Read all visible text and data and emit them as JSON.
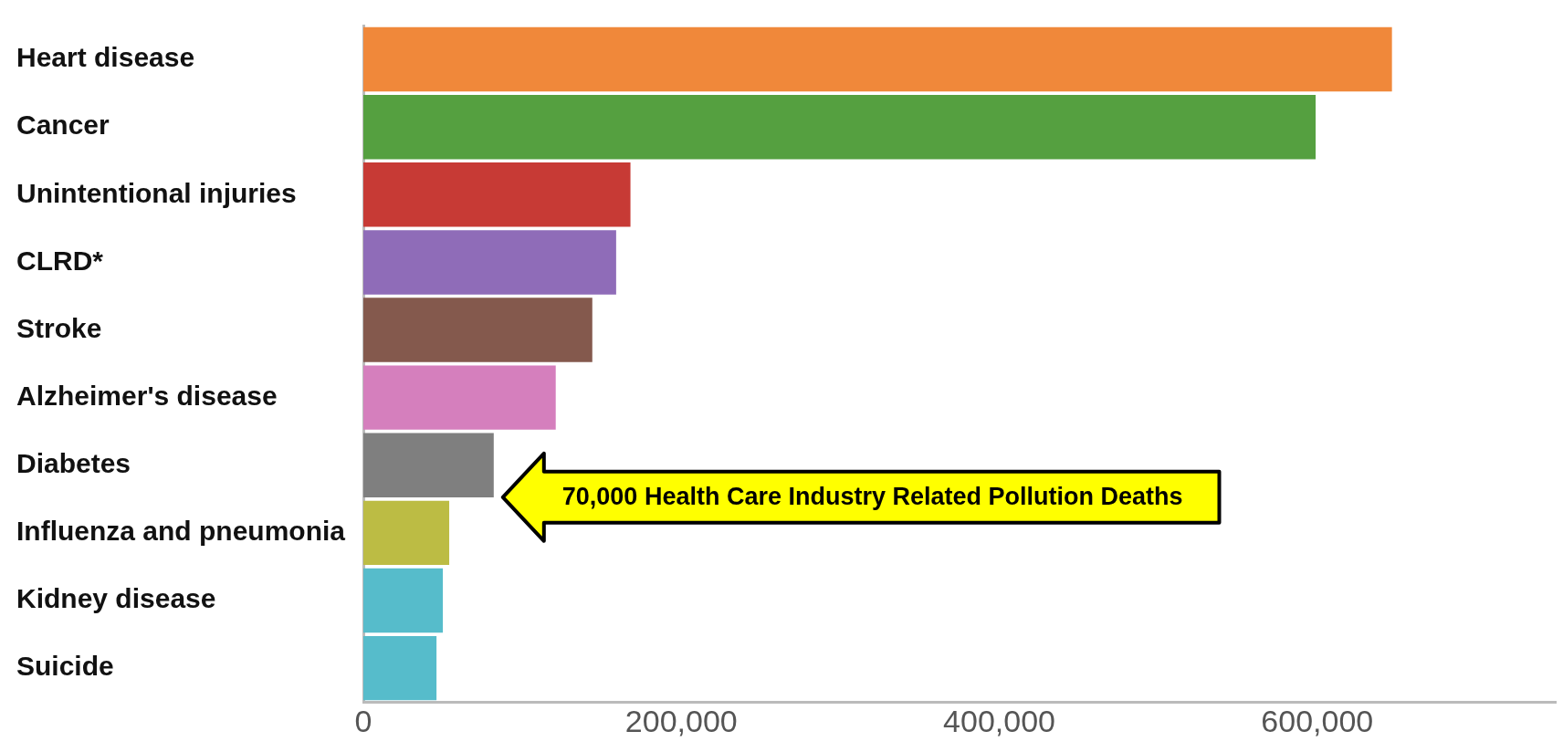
{
  "chart_data": {
    "type": "bar",
    "orientation": "horizontal",
    "categories": [
      "Heart disease",
      "Cancer",
      "Unintentional injuries",
      "CLRD*",
      "Stroke",
      "Alzheimer's disease",
      "Diabetes",
      "Influenza and pneumonia",
      "Kidney disease",
      "Suicide"
    ],
    "values": [
      647000,
      599000,
      168000,
      159000,
      144000,
      121000,
      82000,
      54000,
      50000,
      46000
    ],
    "colors": [
      "#f0883a",
      "#55a040",
      "#c73a35",
      "#8f6cb8",
      "#84594d",
      "#d57fbd",
      "#7f7f7f",
      "#bcbc44",
      "#56bccb",
      "#56bccb"
    ],
    "xlim": [
      0,
      750000
    ],
    "xticks": [
      {
        "value": 0,
        "label": "0"
      },
      {
        "value": 200000,
        "label": "200,000"
      },
      {
        "value": 400000,
        "label": "400,000"
      },
      {
        "value": 600000,
        "label": "600,000"
      }
    ],
    "grid": false,
    "legend": false,
    "annotations": [
      {
        "text": "70,000 Health Care Industry Related Pollution Deaths",
        "x": 82000,
        "y": "Diabetes"
      }
    ]
  }
}
